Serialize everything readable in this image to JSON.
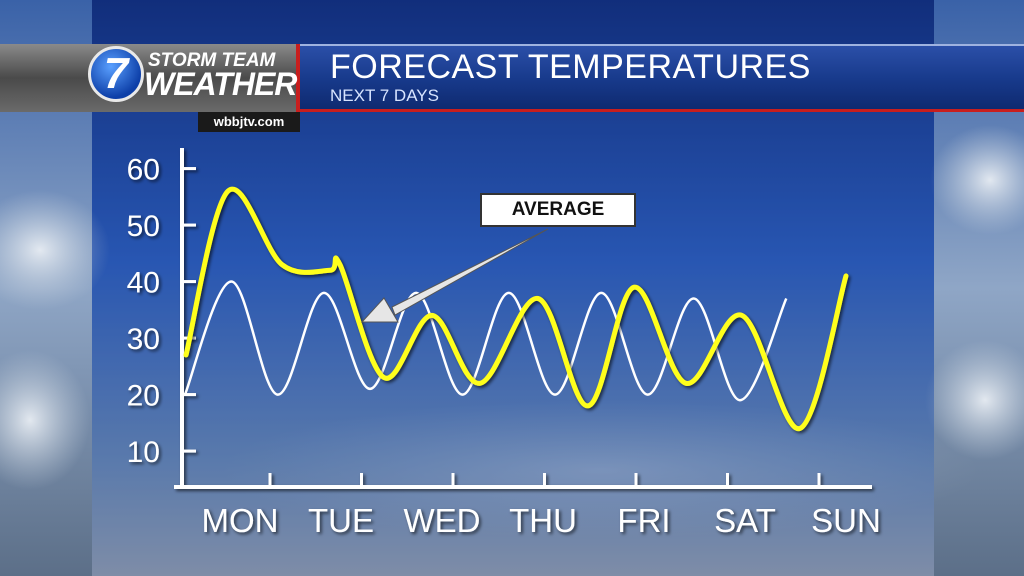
{
  "header": {
    "logo_number": "7",
    "logo_line1": "STORM TEAM",
    "logo_line2": "WEATHER",
    "title": "FORECAST TEMPERATURES",
    "subtitle": "NEXT 7 DAYS",
    "website": "wbbjtv.com"
  },
  "colors": {
    "forecast": "#ffff1a",
    "average": "#ffffff",
    "accent_red": "#c81e1e",
    "header_blue": "#17398a"
  },
  "chart_data": {
    "type": "line",
    "title": "FORECAST TEMPERATURES",
    "subtitle": "NEXT 7 DAYS",
    "xlabel": "",
    "ylabel": "",
    "categories": [
      "MON",
      "TUE",
      "WED",
      "THU",
      "FRI",
      "SAT",
      "SUN"
    ],
    "y_ticks": [
      10,
      20,
      30,
      40,
      50,
      60
    ],
    "ylim": [
      7,
      65
    ],
    "grid": false,
    "annotation": "AVERAGE",
    "series": [
      {
        "name": "",
        "x": [
          0.0,
          0.25,
          0.5,
          0.75,
          1.0,
          1.25,
          1.5,
          1.75,
          2.0,
          2.25,
          2.5,
          2.75,
          3.0,
          3.25,
          3.5,
          3.75,
          4.0,
          4.25,
          4.5,
          4.75,
          5.0,
          5.25,
          5.5,
          5.75,
          6.0
        ],
        "y": [
          27,
          56,
          43,
          42,
          43,
          23,
          34,
          22,
          37,
          18,
          39,
          22,
          34,
          14,
          41,
          null,
          null,
          null,
          null,
          null,
          null,
          null,
          null,
          null,
          null
        ]
      },
      {
        "name": "",
        "x": [
          0.0,
          0.5,
          1.0,
          1.5,
          2.0,
          2.5,
          3.0,
          3.5,
          4.0,
          4.5,
          5.0,
          5.5,
          6.0,
          6.5,
          7.0
        ],
        "y": [
          20,
          40,
          20,
          38,
          21,
          38,
          20,
          38,
          20,
          38,
          20,
          37,
          19,
          37,
          null
        ]
      }
    ]
  }
}
